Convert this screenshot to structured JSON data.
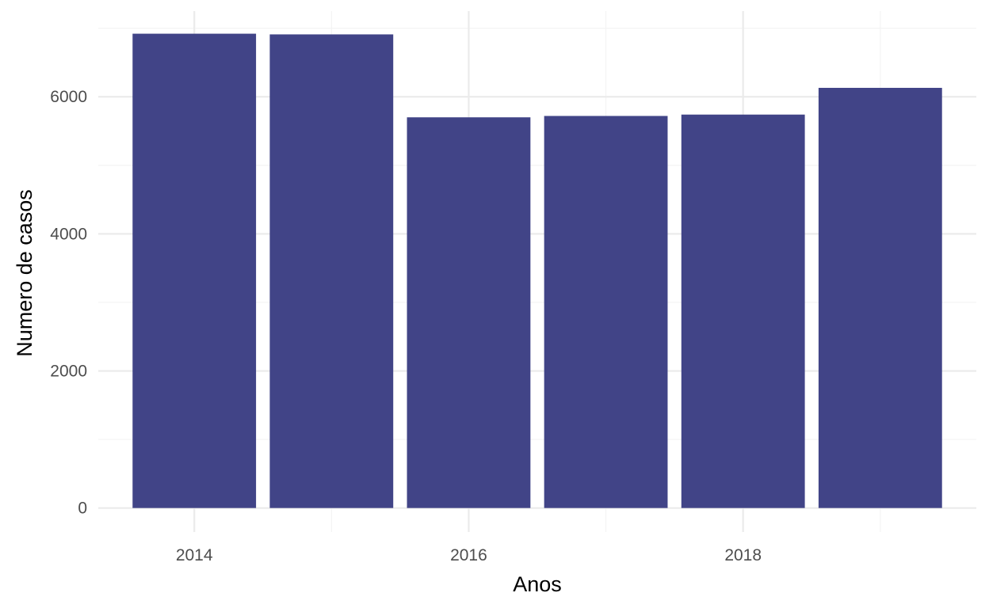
{
  "chart_data": {
    "type": "bar",
    "xlabel": "Anos",
    "ylabel": "Numero de casos",
    "x": [
      2014,
      2015,
      2016,
      2017,
      2018,
      2019
    ],
    "values": [
      6920,
      6910,
      5700,
      5720,
      5740,
      6130
    ],
    "xlim": [
      2013.3,
      2019.7
    ],
    "ylim": [
      -350,
      7250
    ],
    "x_ticks": [
      2014,
      2016,
      2018
    ],
    "x_tick_labels": [
      "2014",
      "2016",
      "2018"
    ],
    "y_ticks": [
      0,
      2000,
      4000,
      6000
    ],
    "y_tick_labels": [
      "0",
      "2000",
      "4000",
      "6000"
    ],
    "bar_color": "#414487",
    "grid": true,
    "legend": "none"
  }
}
